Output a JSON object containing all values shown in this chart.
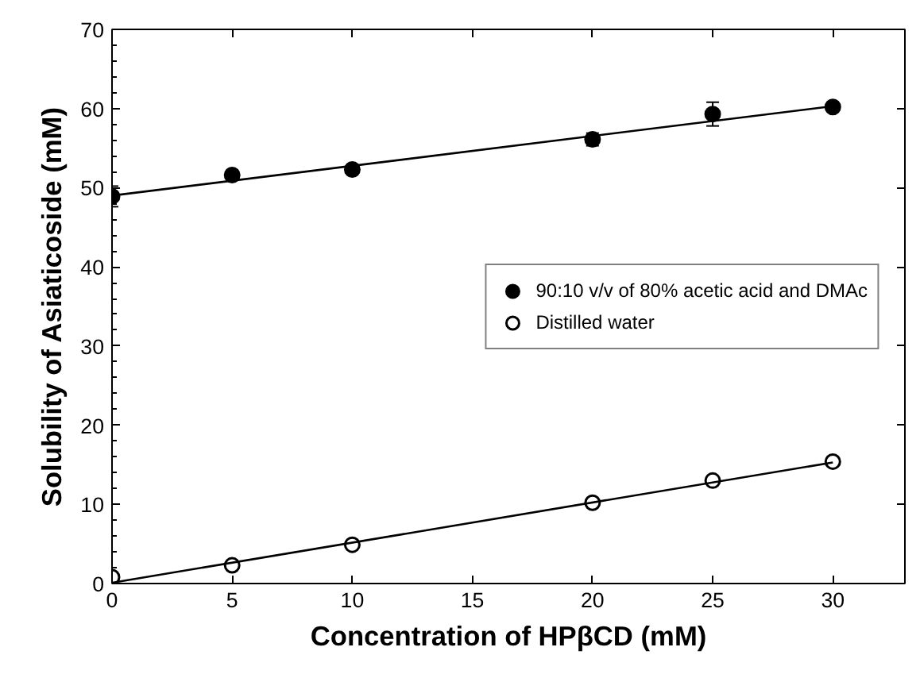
{
  "chart_data": {
    "type": "scatter",
    "xlabel": "Concentration of HPβCD (mM)",
    "ylabel": "Solubility of Asiaticoside (mM)",
    "xlim": [
      0,
      33
    ],
    "ylim": [
      0,
      70
    ],
    "xticks": [
      0,
      5,
      10,
      15,
      20,
      25,
      30
    ],
    "yticks": [
      0,
      10,
      20,
      30,
      40,
      50,
      60,
      70
    ],
    "grid": false,
    "legend": "right",
    "series": [
      {
        "name": "90:10 v/v of 80% acetic acid and DMAc",
        "color": "#000000",
        "x": [
          0,
          5,
          10,
          20,
          25,
          30
        ],
        "values": [
          48.9,
          51.6,
          52.3,
          56.1,
          59.3,
          60.2
        ],
        "marker": "circle",
        "errors": [
          1.3,
          0.5,
          0.4,
          0.8,
          1.5,
          0.5
        ]
      },
      {
        "name": "Distilled water",
        "color": "#ffffff",
        "x": [
          0,
          5,
          10,
          20,
          25,
          30
        ],
        "values": [
          0.8,
          2.3,
          4.9,
          10.2,
          13.0,
          15.4
        ],
        "marker": "circle"
      },
      {
        "type": "line",
        "color": "#000000",
        "x": [
          0,
          30
        ],
        "values": [
          49.0,
          60.3
        ]
      },
      {
        "type": "line",
        "color": "#000000",
        "x": [
          0,
          30
        ],
        "values": [
          0.1,
          15.3
        ]
      }
    ]
  }
}
